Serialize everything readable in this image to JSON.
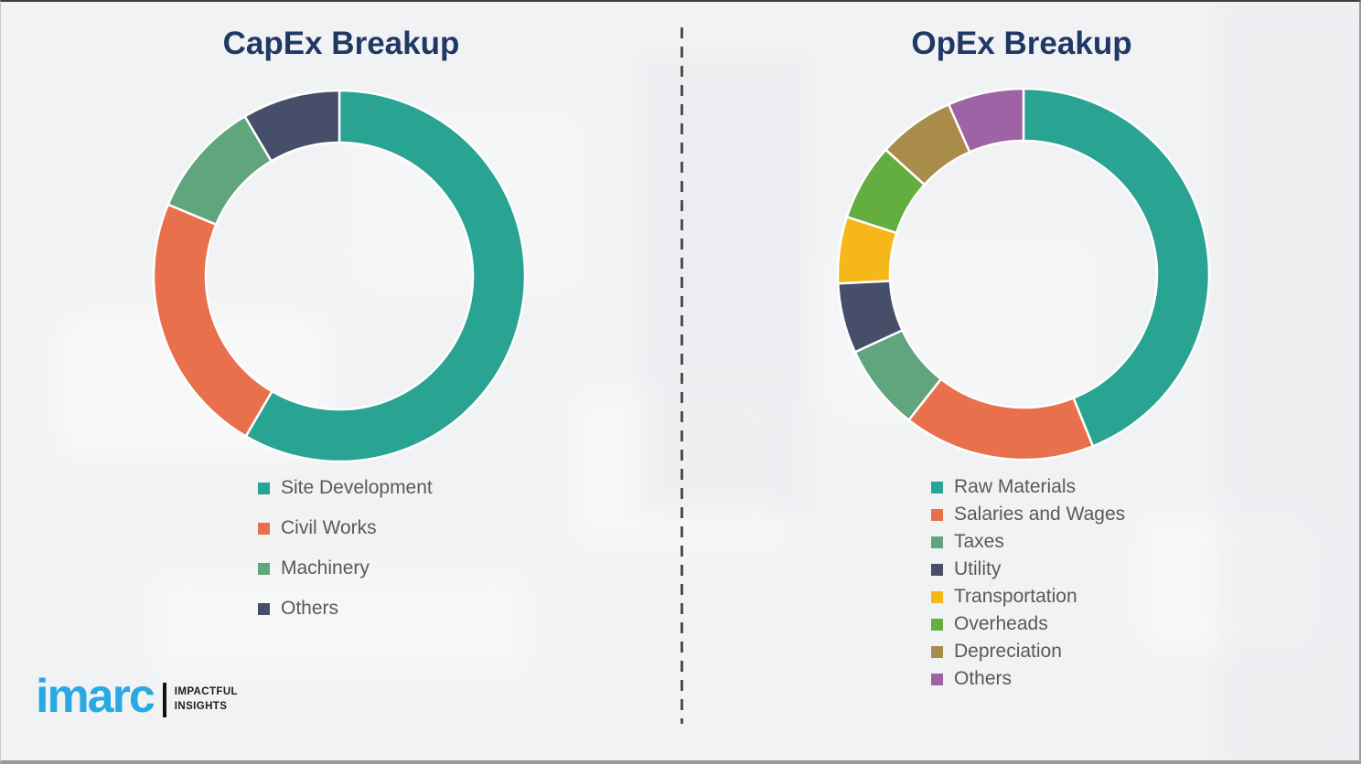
{
  "page": {
    "background_color": "#f1f2f4",
    "divider_color": "#4f4f4f",
    "title_color": "#1f3864",
    "legend_text_color": "#595959"
  },
  "chart_data": [
    {
      "type": "pie",
      "subtype": "donut",
      "title": "CapEx Breakup",
      "categories": [
        "Site Development",
        "Civil Works",
        "Machinery",
        "Others"
      ],
      "values": [
        58.4,
        22.9,
        10.2,
        8.5
      ],
      "colors": [
        "#2aa492",
        "#e8704c",
        "#60a57e",
        "#474e69"
      ],
      "start_angle_deg": 0,
      "direction": "clockwise",
      "hole_ratio": 0.72,
      "legend_position": "below-left",
      "data_labels": false
    },
    {
      "type": "pie",
      "subtype": "donut",
      "title": "OpEx Breakup",
      "categories": [
        "Raw Materials",
        "Salaries and Wages",
        "Taxes",
        "Utility",
        "Transportation",
        "Overheads",
        "Depreciation",
        "Others"
      ],
      "values": [
        43.9,
        16.7,
        7.5,
        6.1,
        5.8,
        6.7,
        6.7,
        6.6
      ],
      "colors": [
        "#2aa492",
        "#e8704c",
        "#60a57e",
        "#474e69",
        "#f6b719",
        "#64ad3f",
        "#aa8c4a",
        "#9e63a5"
      ],
      "start_angle_deg": 0,
      "direction": "clockwise",
      "hole_ratio": 0.72,
      "legend_position": "below-left",
      "data_labels": false
    }
  ],
  "logo": {
    "brand": "imarc",
    "tagline": [
      "IMPACTFUL",
      "INSIGHTS"
    ],
    "brand_color": "#29a9e1",
    "tagline_color": "#1c1c1c"
  }
}
